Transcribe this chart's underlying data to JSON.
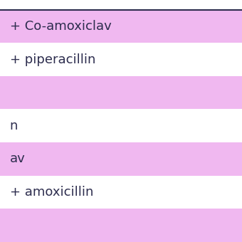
{
  "rows": [
    {
      "text": "+ Co-amoxiclav",
      "bg": "#f0b8f0"
    },
    {
      "text": "+ piperacillin",
      "bg": "#ffffff"
    },
    {
      "text": "",
      "bg": "#f0b8f0"
    },
    {
      "text": "n",
      "bg": "#ffffff"
    },
    {
      "text": "av",
      "bg": "#f0b8f0"
    },
    {
      "text": "+ amoxicillin",
      "bg": "#ffffff"
    },
    {
      "text": "",
      "bg": "#f0b8f0"
    }
  ],
  "top_line_color": "#2d2d4e",
  "text_color": "#2d2d4e",
  "font_size": 13,
  "fig_bg": "#ffffff"
}
